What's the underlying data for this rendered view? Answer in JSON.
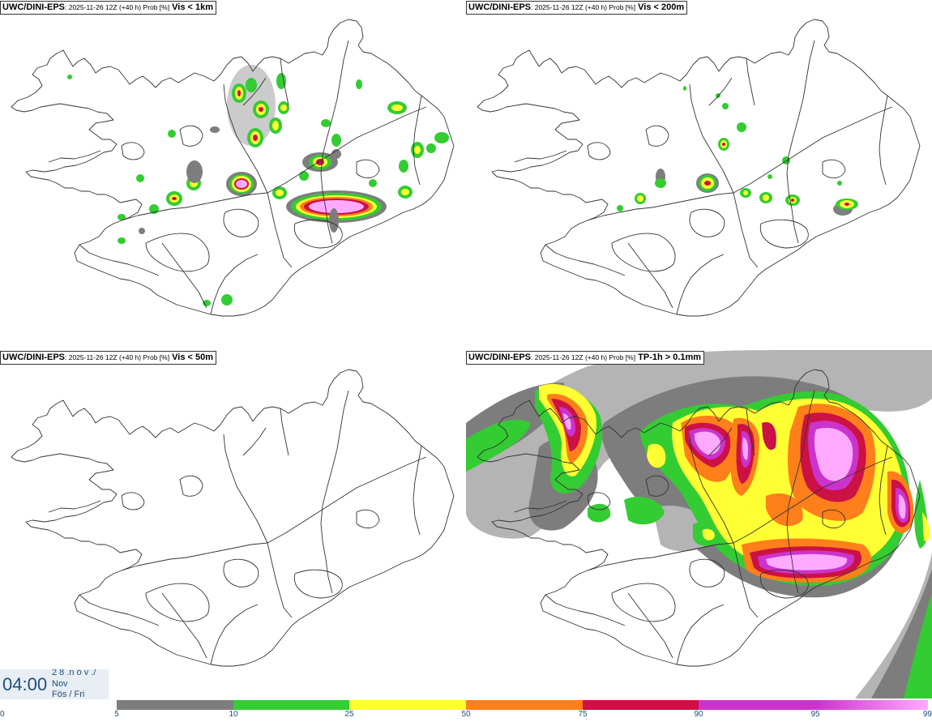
{
  "panels": [
    {
      "model": "UWC/DINI-EPS",
      "run": ": 2025-11-26 12Z (+40 h) Prob [%]",
      "variable": " Vis < 1km"
    },
    {
      "model": "UWC/DINI-EPS",
      "run": ": 2025-11-26 12Z (+40 h) Prob [%]",
      "variable": " Vis < 200m"
    },
    {
      "model": "UWC/DINI-EPS",
      "run": ": 2025-11-26 12Z (+40 h) Prob [%]",
      "variable": " Vis < 50m"
    },
    {
      "model": "UWC/DINI-EPS",
      "run": ": 2025-11-26 12Z (+40 h) Prob [%]",
      "variable": " TP-1h > 0.1mm"
    }
  ],
  "timebox": {
    "time": "04:00",
    "date_line": "2 8 .n ó v ./",
    "month": "Nov",
    "weekday": "Fös / Fri"
  },
  "legend": {
    "ticks": [
      "0",
      "5",
      "10",
      "25",
      "50",
      "75",
      "90",
      "95",
      "99"
    ],
    "colors": [
      "#ffffff",
      "#b4b4b4",
      "#7d7d7d",
      "#33cc33",
      "#ffff33",
      "#ff7f1a",
      "#cc1144",
      "#cc33cc",
      "#ffaaff"
    ]
  },
  "colors": {
    "gray_light": "#b4b4b4",
    "gray_dark": "#7d7d7d",
    "green": "#33cc33",
    "yellow": "#ffff33",
    "orange": "#ff7f1a",
    "red": "#cc1144",
    "magenta": "#cc33cc",
    "pink": "#ffaaff",
    "outline": "#333333",
    "time_text": "#1f4e79"
  }
}
